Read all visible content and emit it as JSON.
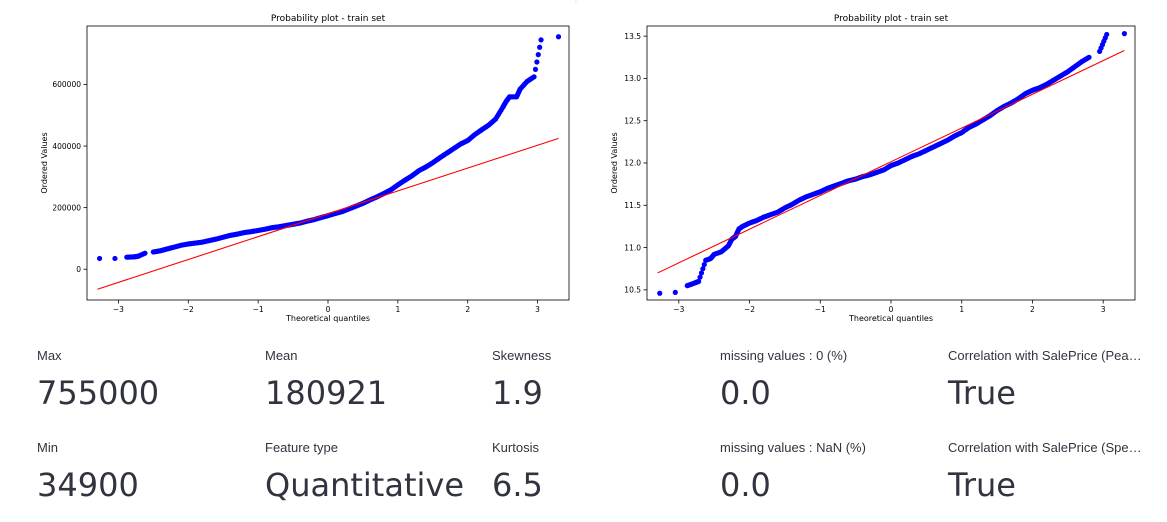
{
  "plots": [
    {
      "title": "Probability plot - train set",
      "xlabel": "Theoretical quantiles",
      "ylabel": "Ordered Values",
      "x_ticks": [
        "−3",
        "−2",
        "−1",
        "0",
        "1",
        "2",
        "3"
      ],
      "y_ticks": [
        "0",
        "200000",
        "400000",
        "600000"
      ]
    },
    {
      "title": "Probability plot - train set",
      "xlabel": "Theoretical quantiles",
      "ylabel": "Ordered Values",
      "x_ticks": [
        "−3",
        "−2",
        "−1",
        "0",
        "1",
        "2",
        "3"
      ],
      "y_ticks": [
        "10.5",
        "11.0",
        "11.5",
        "12.0",
        "12.5",
        "13.0",
        "13.5"
      ]
    }
  ],
  "chart_data": [
    {
      "type": "scatter",
      "title": "Probability plot - train set",
      "xlabel": "Theoretical quantiles",
      "ylabel": "Ordered Values",
      "xlim": [
        -3.45,
        3.45
      ],
      "ylim": [
        -100000,
        790000
      ],
      "series": [
        {
          "x": [
            -3.27,
            -3.05,
            -2.88,
            -2.78,
            -2.72,
            -2.62,
            -2.5,
            -2.4,
            -2.3,
            -2.2,
            -2.1,
            -2.0,
            -1.9,
            -1.8,
            -1.7,
            -1.6,
            -1.5,
            -1.4,
            -1.3,
            -1.2,
            -1.1,
            -1.0,
            -0.9,
            -0.8,
            -0.7,
            -0.6,
            -0.5,
            -0.4,
            -0.3,
            -0.2,
            -0.1,
            0.0,
            0.1,
            0.2,
            0.3,
            0.4,
            0.5,
            0.6,
            0.7,
            0.8,
            0.9,
            1.0,
            1.1,
            1.2,
            1.3,
            1.4,
            1.5,
            1.6,
            1.7,
            1.8,
            1.9,
            2.0,
            2.1,
            2.2,
            2.3,
            2.4,
            2.5,
            2.55,
            2.6,
            2.7,
            2.75,
            2.85,
            2.95,
            3.05,
            3.3
          ],
          "y": [
            35000,
            35000,
            39000,
            40000,
            42000,
            52000,
            56000,
            60000,
            66000,
            72000,
            78000,
            82000,
            85000,
            88000,
            93000,
            98000,
            104000,
            110000,
            114000,
            119000,
            122000,
            126000,
            130000,
            135000,
            138000,
            142000,
            146000,
            150000,
            156000,
            161000,
            168000,
            174000,
            181000,
            187000,
            196000,
            205000,
            214000,
            225000,
            235000,
            246000,
            258000,
            274000,
            289000,
            303000,
            320000,
            332000,
            346000,
            362000,
            377000,
            392000,
            407000,
            418000,
            437000,
            453000,
            468000,
            488000,
            525000,
            545000,
            560000,
            560000,
            585000,
            610000,
            625000,
            745000,
            755000
          ]
        },
        {
          "x": [
            -3.3,
            3.3
          ],
          "y": [
            -65000,
            425000
          ]
        }
      ]
    },
    {
      "type": "scatter",
      "title": "Probability plot - train set",
      "xlabel": "Theoretical quantiles",
      "ylabel": "Ordered Values",
      "xlim": [
        -3.45,
        3.45
      ],
      "ylim": [
        10.38,
        13.62
      ],
      "series": [
        {
          "x": [
            -3.27,
            -3.05,
            -2.88,
            -2.78,
            -2.72,
            -2.62,
            -2.55,
            -2.5,
            -2.4,
            -2.3,
            -2.25,
            -2.2,
            -2.15,
            -2.1,
            -2.0,
            -1.9,
            -1.8,
            -1.7,
            -1.6,
            -1.5,
            -1.4,
            -1.3,
            -1.2,
            -1.1,
            -1.0,
            -0.9,
            -0.8,
            -0.7,
            -0.6,
            -0.5,
            -0.4,
            -0.3,
            -0.2,
            -0.1,
            0.0,
            0.1,
            0.2,
            0.3,
            0.4,
            0.5,
            0.6,
            0.7,
            0.8,
            0.9,
            1.0,
            1.1,
            1.2,
            1.3,
            1.4,
            1.5,
            1.6,
            1.7,
            1.8,
            1.9,
            2.0,
            2.1,
            2.2,
            2.3,
            2.4,
            2.5,
            2.6,
            2.7,
            2.8,
            2.95,
            3.05,
            3.3
          ],
          "y": [
            10.46,
            10.47,
            10.55,
            10.58,
            10.6,
            10.85,
            10.87,
            10.92,
            10.95,
            11.02,
            11.1,
            11.13,
            11.22,
            11.25,
            11.29,
            11.32,
            11.36,
            11.39,
            11.42,
            11.47,
            11.51,
            11.56,
            11.6,
            11.63,
            11.66,
            11.7,
            11.73,
            11.76,
            11.79,
            11.81,
            11.84,
            11.86,
            11.89,
            11.92,
            11.97,
            12.0,
            12.04,
            12.08,
            12.11,
            12.15,
            12.19,
            12.23,
            12.27,
            12.32,
            12.36,
            12.42,
            12.46,
            12.51,
            12.56,
            12.62,
            12.67,
            12.71,
            12.76,
            12.82,
            12.86,
            12.89,
            12.93,
            12.98,
            13.03,
            13.08,
            13.14,
            13.2,
            13.25,
            13.32,
            13.52,
            13.53
          ]
        },
        {
          "x": [
            -3.3,
            3.3
          ],
          "y": [
            10.7,
            13.33
          ]
        }
      ]
    }
  ],
  "metrics": [
    {
      "label": "Max",
      "value": "755000"
    },
    {
      "label": "Mean",
      "value": "180921"
    },
    {
      "label": "Skewness",
      "value": "1.9"
    },
    {
      "label": "missing values : 0 (%)",
      "value": "0.0"
    },
    {
      "label": "Correlation with SalePrice (Pearson)",
      "value": "True"
    },
    {
      "label": "Min",
      "value": "34900"
    },
    {
      "label": "Feature type",
      "value": "Quantitative"
    },
    {
      "label": "Kurtosis",
      "value": "6.5"
    },
    {
      "label": "missing values : NaN (%)",
      "value": "0.0"
    },
    {
      "label": "Correlation with SalePrice (Spearman)",
      "value": "True"
    }
  ],
  "colors": {
    "points": "#0000ff",
    "fit_line": "#ff0000",
    "text": "#31333f"
  }
}
